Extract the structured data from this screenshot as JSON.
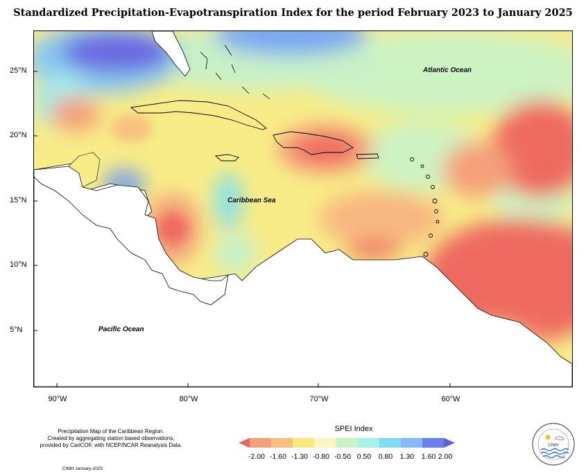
{
  "title": "Standardized Precipitation-Evapotranspiration Index for the period February 2023 to January 2025",
  "lat_labels": [
    "25°N",
    "20°N",
    "15°N",
    "10°N",
    "5°N"
  ],
  "lon_labels": [
    "90°W",
    "80°W",
    "70°W",
    "60°W"
  ],
  "ocean_labels": {
    "atlantic": "Atlantic Ocean",
    "caribbean": "Caribbean Sea",
    "pacific": "Pacific Ocean"
  },
  "footnote": {
    "line1": "Precipitation Map of the Caribbean Region.",
    "line2": "Created by aggregating station based observations,",
    "line3": "provided by CariCOF, with NCEP/NCAR Reanalysis Data."
  },
  "credit": "CIMH January-2025",
  "legend": {
    "title": "SPEI Index",
    "labels": [
      "-2.00",
      "-1.60",
      "-1.30",
      "-0.80",
      "-0.50",
      "0.50",
      "0.80",
      "1.30",
      "1.60",
      "2.00"
    ],
    "colors": [
      "#e8635a",
      "#f5a07a",
      "#f8c080",
      "#f8ea80",
      "#faf6c0",
      "#c8f4c8",
      "#a8f0e8",
      "#80ddf0",
      "#88b8f5",
      "#6a80e8",
      "#5a62d8"
    ]
  },
  "logo_text": "CIMH"
}
